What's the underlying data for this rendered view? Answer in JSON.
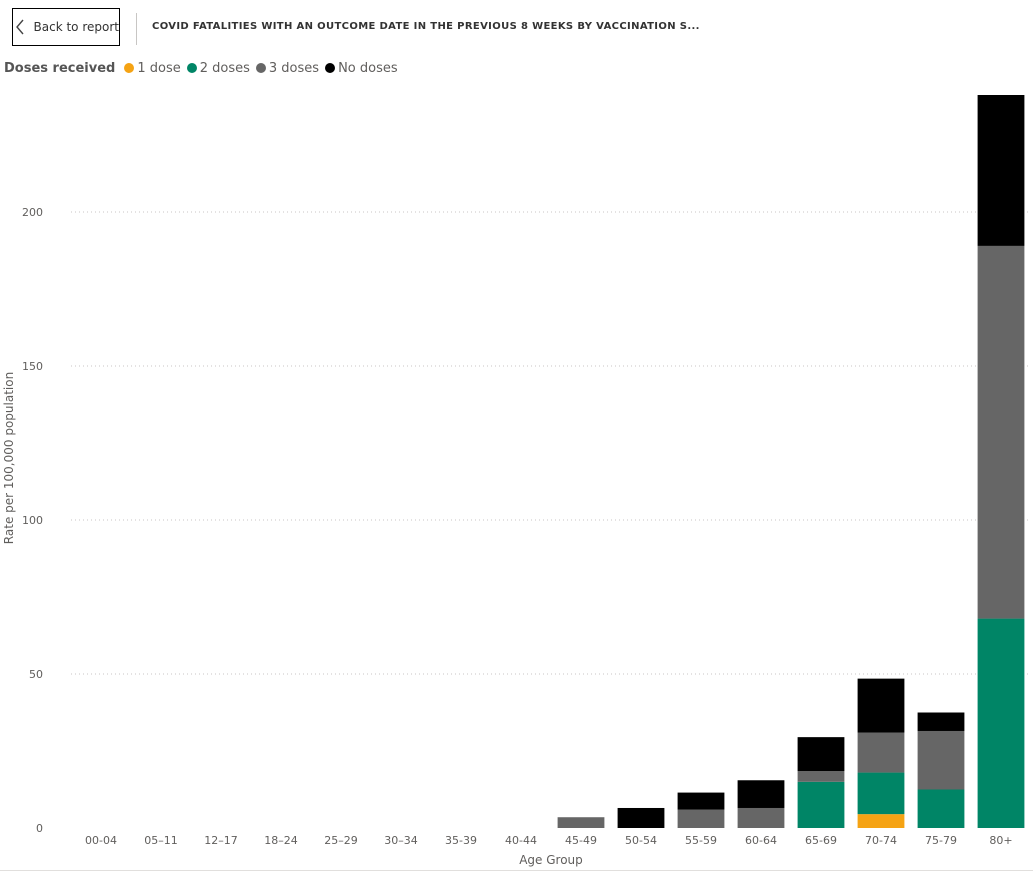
{
  "header": {
    "back_label": "Back to report",
    "title": "COVID FATALITIES WITH AN OUTCOME DATE IN THE PREVIOUS 8 WEEKS BY VACCINATION S..."
  },
  "chart_data": {
    "type": "bar",
    "stacked": true,
    "legend_title": "Doses received",
    "categories": [
      "00-04",
      "05–11",
      "12–17",
      "18–24",
      "25–29",
      "30–34",
      "35-39",
      "40-44",
      "45-49",
      "50-54",
      "55-59",
      "60-64",
      "65-69",
      "70-74",
      "75-79",
      "80+"
    ],
    "series": [
      {
        "name": "1 dose",
        "color": "#F5A314",
        "values": [
          0,
          0,
          0,
          0,
          0,
          0,
          0,
          0,
          0,
          0,
          0,
          0,
          0,
          4.5,
          0,
          0
        ]
      },
      {
        "name": "2 doses",
        "color": "#008566",
        "values": [
          0,
          0,
          0,
          0,
          0,
          0,
          0,
          0,
          0,
          0,
          0,
          0,
          15,
          13.5,
          12.5,
          68
        ]
      },
      {
        "name": "3 doses",
        "color": "#666666",
        "values": [
          0,
          0,
          0,
          0,
          0,
          0,
          0,
          0,
          3.5,
          0,
          6,
          6.5,
          3.5,
          13,
          19,
          121
        ]
      },
      {
        "name": "No doses",
        "color": "#000000",
        "values": [
          0,
          0,
          0,
          0,
          0,
          0,
          0,
          0,
          0,
          6.5,
          5.5,
          9,
          11,
          17.5,
          6,
          49
        ]
      }
    ],
    "xlabel": "Age Group",
    "ylabel": "Rate per 100,000 population",
    "ylim": [
      0,
      238
    ],
    "yticks": [
      0,
      50,
      100,
      150,
      200
    ],
    "grid": true,
    "legend_position": "top-left"
  }
}
